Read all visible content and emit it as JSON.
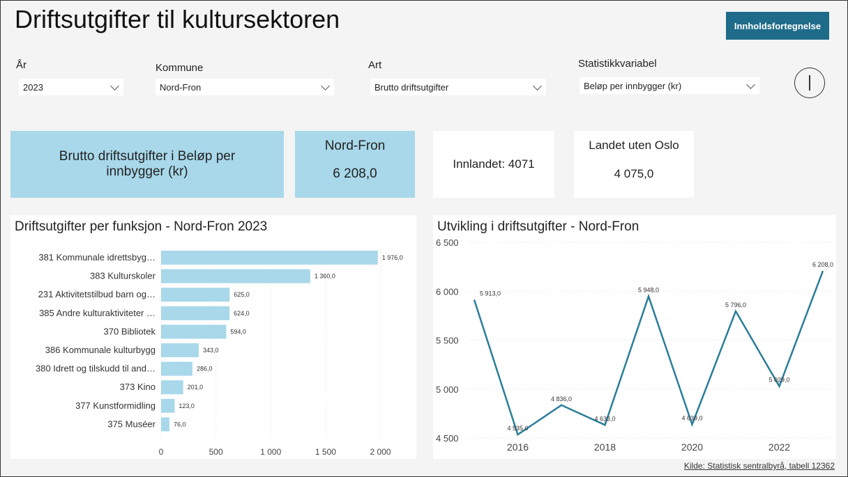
{
  "header": {
    "title": "Driftsutgifter til kultursektoren",
    "button": "Innholdsfortegnelse"
  },
  "filters": [
    {
      "label": "År",
      "value": "2023"
    },
    {
      "label": "Kommune",
      "value": "Nord-Fron"
    },
    {
      "label": "Art",
      "value": "Brutto driftsutgifter"
    },
    {
      "label": "Statistikkvariabel",
      "value": "Beløp per innbygger (kr)"
    }
  ],
  "cards": {
    "description": "Brutto driftsutgifter i Beløp per innbygger (kr)",
    "municipality": {
      "title": "Nord-Fron",
      "value": "6 208,0"
    },
    "county": "Innlandet: 4071",
    "country": {
      "title": "Landet uten Oslo",
      "value": "4 075,0"
    }
  },
  "chart_data": [
    {
      "type": "bar",
      "orientation": "horizontal",
      "title": "Driftsutgifter per funksjon - Nord-Fron 2023",
      "color": "#a8d8ea",
      "categories": [
        "381 Kommunale idrettsbyg…",
        "383 Kulturskoler",
        "231 Aktivitetstilbud barn og…",
        "385 Andre kulturaktiviteter …",
        "370 Bibliotek",
        "386 Kommunale kulturbygg",
        "380 Idrett og tilskudd til and…",
        "373 Kino",
        "377 Kunstformidling",
        "375 Muséer"
      ],
      "values": [
        1976,
        1360,
        625,
        624,
        594,
        343,
        286,
        201,
        123,
        76
      ],
      "value_labels": [
        "1 976,0",
        "1 360,0",
        "625,0",
        "624,0",
        "594,0",
        "343,0",
        "286,0",
        "201,0",
        "123,0",
        "76,0"
      ],
      "xlim": [
        0,
        2200
      ],
      "xticks": [
        0,
        500,
        {
          "value": 1000,
          "label": "1 000"
        },
        {
          "value": 1500,
          "label": "1 500"
        },
        {
          "value": 2000,
          "label": "2 000"
        }
      ],
      "grid": true
    },
    {
      "type": "line",
      "title": "Utvikling i driftsutgifter - Nord-Fron",
      "color": "#2a7d98",
      "x": [
        2015,
        2016,
        2017,
        2018,
        2019,
        2020,
        2021,
        2022,
        2023
      ],
      "values": [
        5913,
        4535,
        4836,
        4633,
        5948,
        4639,
        5796,
        5029,
        6208
      ],
      "value_labels": [
        "5 913,0",
        "4 535,0",
        "4 836,0",
        "4 633,0",
        "5 948,0",
        "4 639,0",
        "5 796,0",
        "5 029,0",
        "6 208,0"
      ],
      "xlim": [
        2015,
        2023
      ],
      "xticks": [
        2016,
        2018,
        2020,
        2022
      ],
      "ylim": [
        4500,
        6500
      ],
      "yticks": [
        {
          "value": 4500,
          "label": "4 500"
        },
        {
          "value": 5000,
          "label": "5 000"
        },
        {
          "value": 5500,
          "label": "5 500"
        },
        {
          "value": 6000,
          "label": "6 000"
        },
        {
          "value": 6500,
          "label": "6 500"
        }
      ],
      "grid": true
    }
  ],
  "source": "Kilde: Statistisk sentralbyrå, tabell 12362"
}
